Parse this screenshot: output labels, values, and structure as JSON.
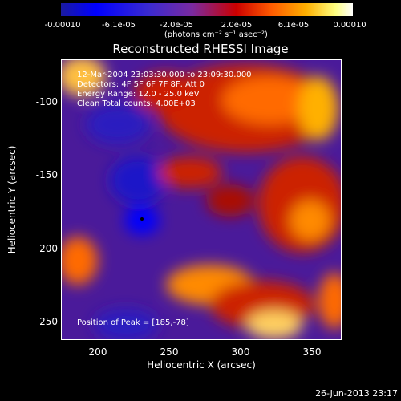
{
  "colorbar": {
    "ticks": [
      "-0.00010",
      "-6.1e-05",
      "-2.0e-05",
      "2.0e-05",
      "6.1e-05",
      "0.00010"
    ],
    "units": "(photons cm⁻² s⁻¹ asec⁻²)"
  },
  "plot": {
    "title": "Reconstructed RHESSI Image",
    "annotations": {
      "line1": "12-Mar-2004 23:03:30.000 to 23:09:30.000",
      "line2": "Detectors: 4F 5F 6F 7F 8F, Att 0",
      "line3": "Energy Range: 12.0 - 25.0 keV",
      "line4": "Clean    Total counts: 4.00E+03",
      "peak": "Position of Peak = [185,-78]"
    },
    "xlabel": "Heliocentric X (arcsec)",
    "ylabel": "Heliocentric Y (arcsec)",
    "xticks": [
      "200",
      "250",
      "300",
      "350"
    ],
    "yticks": [
      "-100",
      "-150",
      "-200",
      "-250"
    ]
  },
  "footer": {
    "date": "26-Jun-2013 23:17"
  },
  "colors": {
    "background": "#000000",
    "image_low": "#4a1a9a",
    "image_high": "#ffff80"
  }
}
